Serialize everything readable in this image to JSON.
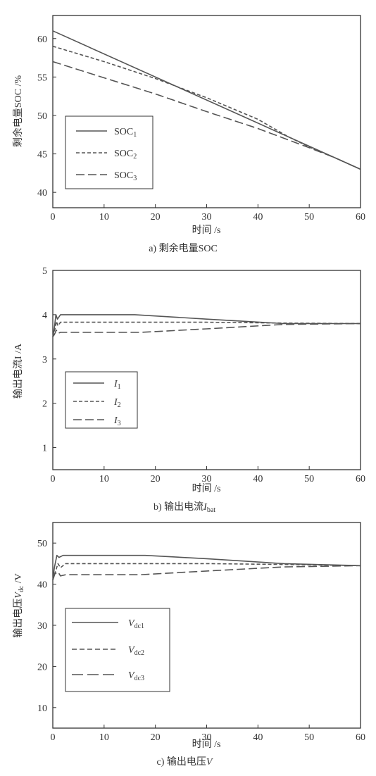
{
  "chart_data": [
    {
      "type": "line",
      "caption": "a) 剩余电量SOC",
      "xlabel": "时间  /s",
      "ylabel": "剩余电量SOC /%",
      "xlim": [
        0,
        60
      ],
      "ylim": [
        38,
        63
      ],
      "xticks": [
        0,
        10,
        20,
        30,
        40,
        50,
        60
      ],
      "yticks": [
        40,
        45,
        50,
        55,
        60
      ],
      "legend_position": "bottom-left",
      "series": [
        {
          "name": "SOC",
          "sub": "1",
          "style": "solid",
          "x": [
            0,
            60
          ],
          "y": [
            61,
            43
          ]
        },
        {
          "name": "SOC",
          "sub": "2",
          "style": "dashed",
          "x": [
            0,
            10,
            20,
            30,
            40,
            46,
            50,
            55,
            60
          ],
          "y": [
            59,
            57,
            54.8,
            52.3,
            49.5,
            47.2,
            45.9,
            44.5,
            43
          ]
        },
        {
          "name": "SOC",
          "sub": "3",
          "style": "longdash",
          "x": [
            0,
            10,
            20,
            30,
            40,
            46,
            50,
            55,
            60
          ],
          "y": [
            57,
            54.9,
            52.8,
            50.5,
            48.3,
            46.8,
            45.8,
            44.5,
            43
          ]
        }
      ]
    },
    {
      "type": "line",
      "caption_prefix": "b) 输出电流",
      "caption_var": "I",
      "caption_sub": "bat",
      "xlabel": "时间  /s",
      "ylabel": "输出电流I /A",
      "xlim": [
        0,
        60
      ],
      "ylim": [
        0.5,
        5
      ],
      "xticks": [
        0,
        10,
        20,
        30,
        40,
        50,
        60
      ],
      "yticks": [
        1,
        2,
        3,
        4,
        5
      ],
      "legend_position": "bottom-left",
      "series": [
        {
          "name": "I",
          "sub": "1",
          "style": "solid",
          "x": [
            0,
            0.3,
            0.6,
            0.9,
            1.5,
            3,
            10,
            16,
            30,
            45,
            60
          ],
          "y": [
            3.5,
            3.7,
            4.0,
            3.9,
            4.0,
            4.0,
            4.0,
            4.0,
            3.9,
            3.8,
            3.8
          ]
        },
        {
          "name": "I",
          "sub": "2",
          "style": "dashed",
          "x": [
            0,
            0.3,
            0.7,
            1,
            1.5,
            3,
            10,
            30,
            45,
            60
          ],
          "y": [
            3.5,
            3.6,
            3.85,
            3.75,
            3.83,
            3.83,
            3.83,
            3.83,
            3.81,
            3.8
          ]
        },
        {
          "name": "I",
          "sub": "3",
          "style": "longdash",
          "x": [
            0,
            0.3,
            0.7,
            1,
            1.5,
            3,
            10,
            17,
            30,
            45,
            60
          ],
          "y": [
            3.5,
            3.55,
            3.65,
            3.58,
            3.6,
            3.6,
            3.6,
            3.6,
            3.68,
            3.78,
            3.8
          ]
        }
      ]
    },
    {
      "type": "line",
      "caption_prefix": "c) 输出电压",
      "caption_var": "V",
      "caption_sub": "",
      "xlabel": "时间  /s",
      "ylabel_prefix": "输出电压",
      "ylabel_var": "V",
      "ylabel_sub": "dc",
      "ylabel_suffix": " /V",
      "xlim": [
        0,
        60
      ],
      "ylim": [
        5,
        55
      ],
      "xticks": [
        0,
        10,
        20,
        30,
        40,
        50,
        60
      ],
      "yticks": [
        10,
        20,
        30,
        40,
        50
      ],
      "legend_position": "center-left",
      "series": [
        {
          "name": "V",
          "sub": "dc1",
          "style": "solid",
          "x": [
            0,
            0.3,
            0.8,
            1.2,
            2,
            5,
            10,
            18,
            30,
            45,
            60
          ],
          "y": [
            41,
            44,
            47,
            46.5,
            47,
            47,
            47,
            47,
            46.2,
            45,
            44.5
          ]
        },
        {
          "name": "V",
          "sub": "dc2",
          "style": "dashed",
          "x": [
            0,
            0.5,
            1,
            1.5,
            2.5,
            5,
            10,
            30,
            45,
            60
          ],
          "y": [
            41,
            43,
            45,
            44,
            45,
            45,
            45,
            45,
            44.8,
            44.5
          ]
        },
        {
          "name": "V",
          "sub": "dc3",
          "style": "longdash",
          "x": [
            0,
            0.4,
            1,
            1.5,
            2.5,
            5,
            10,
            17,
            30,
            45,
            60
          ],
          "y": [
            41,
            42.5,
            43,
            42,
            42.3,
            42.3,
            42.3,
            42.3,
            43.2,
            44.2,
            44.5
          ]
        }
      ]
    }
  ]
}
